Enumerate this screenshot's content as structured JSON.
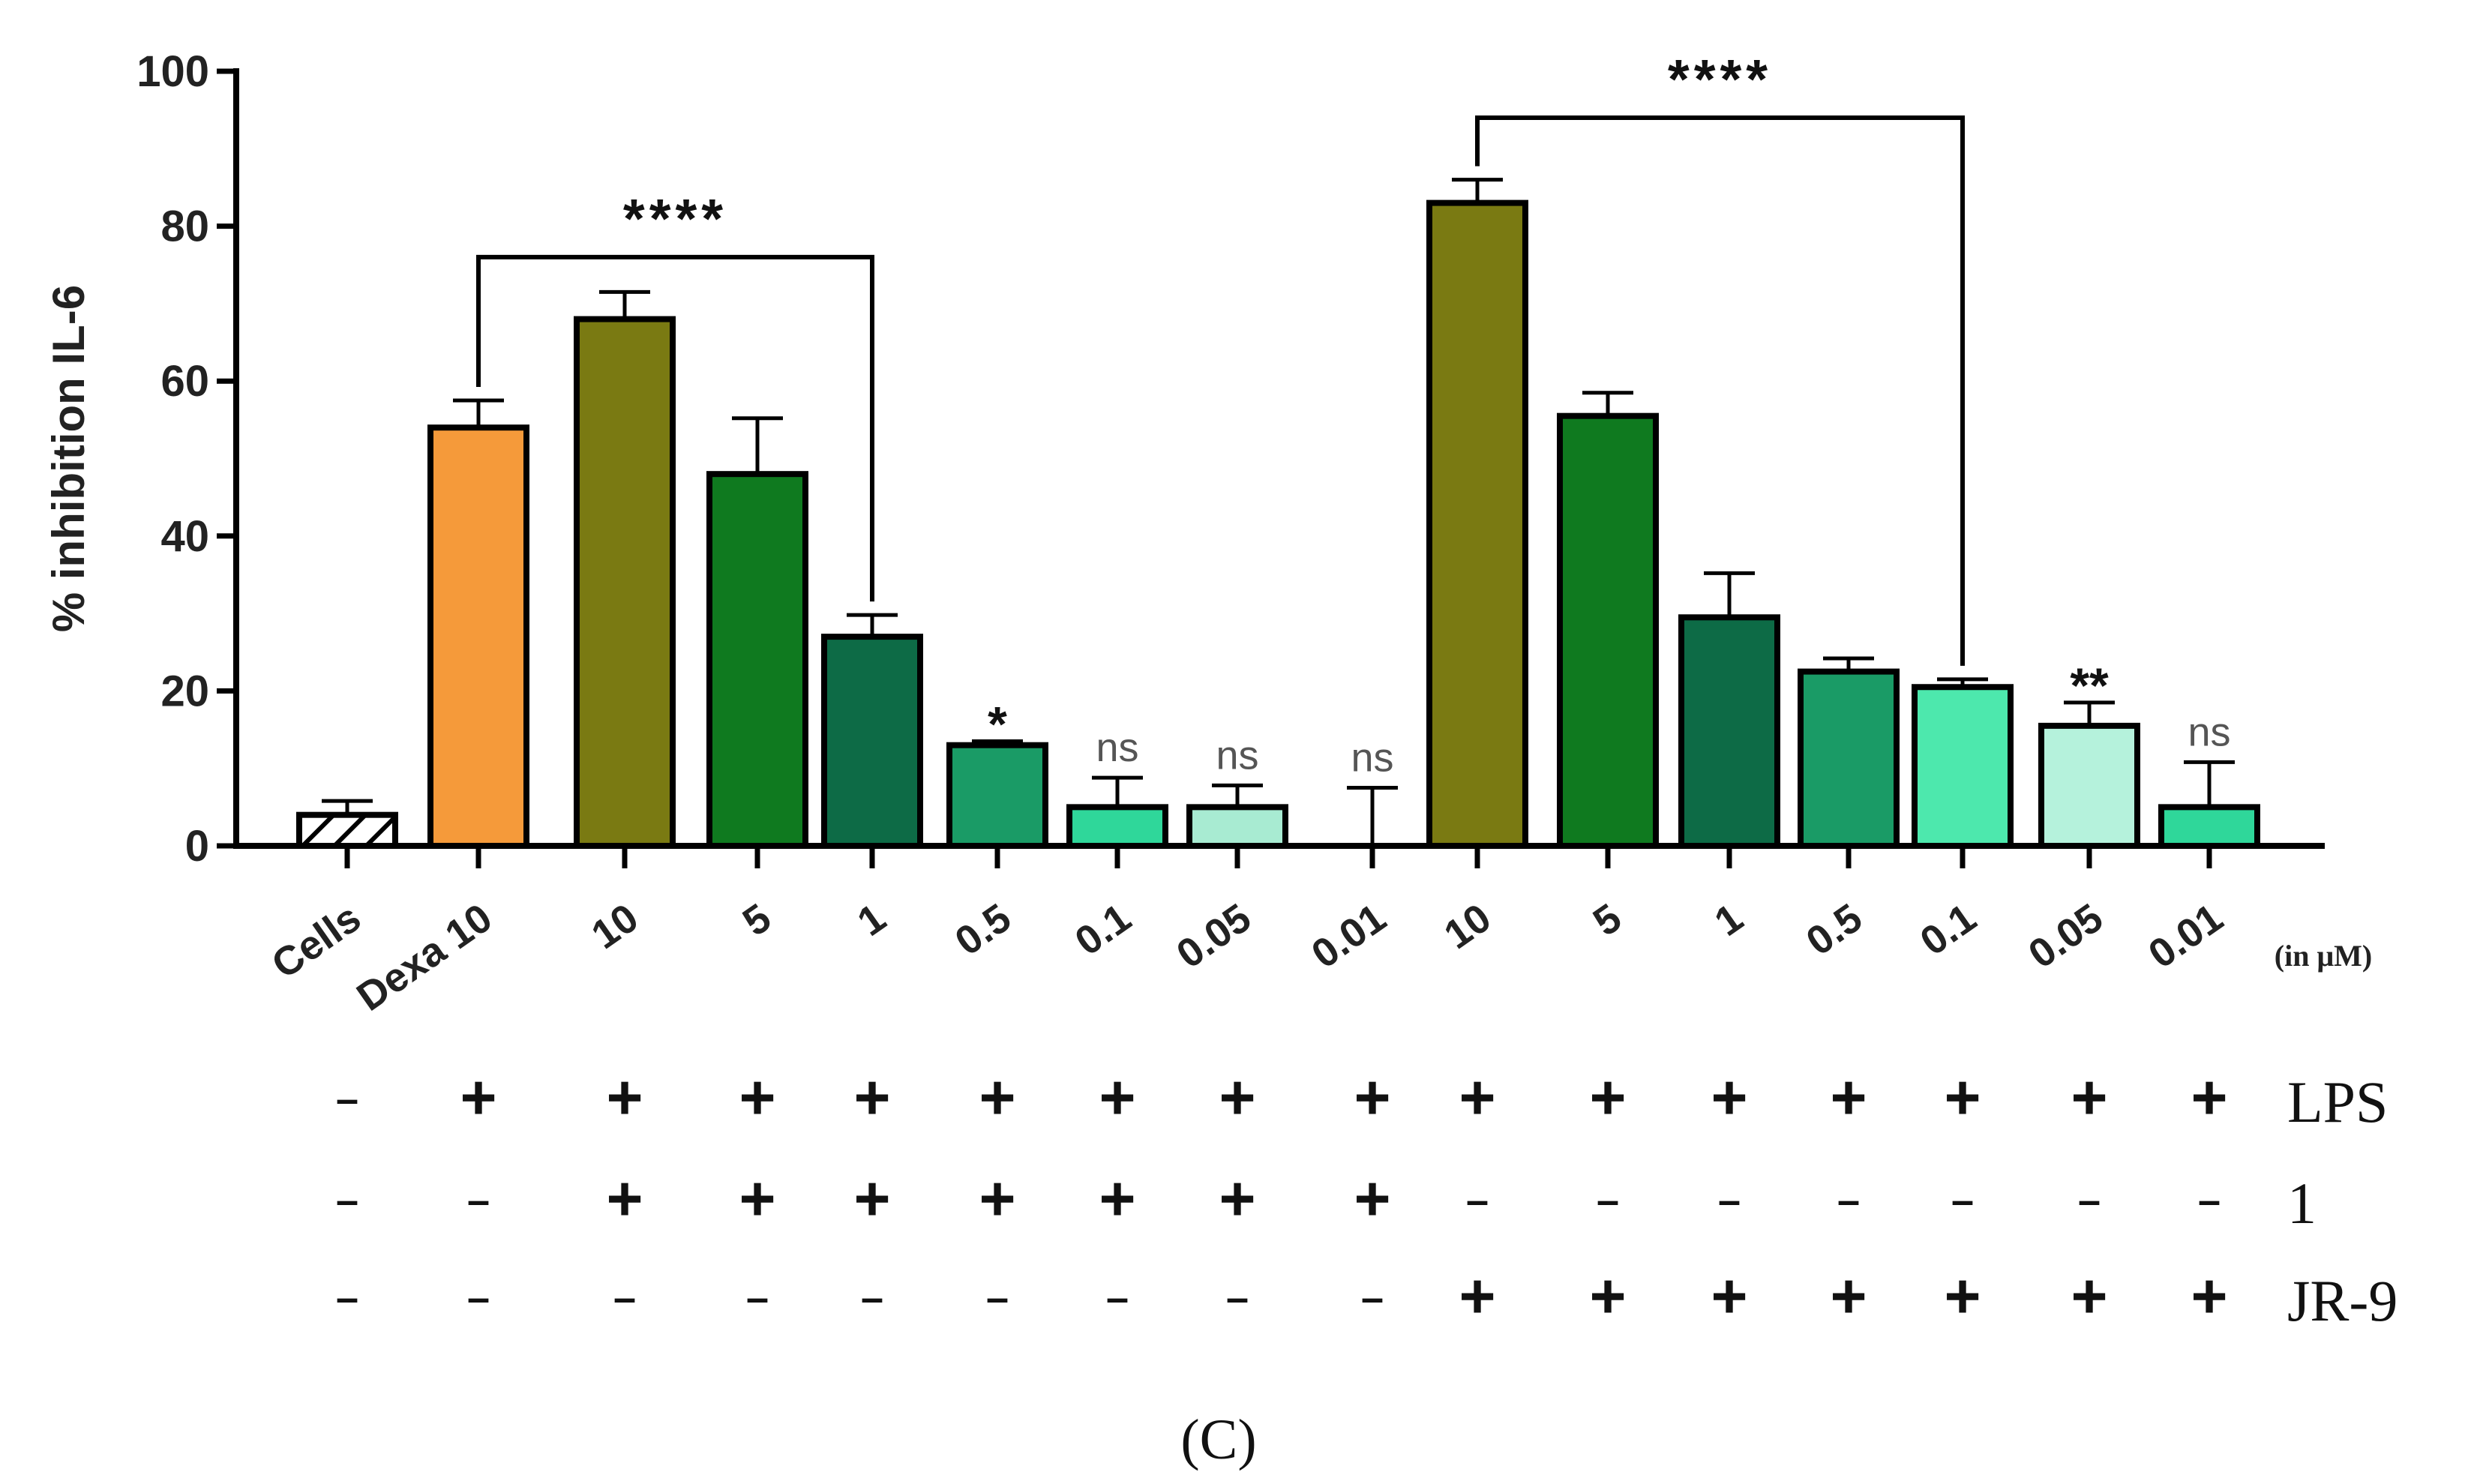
{
  "chart_data": {
    "type": "bar",
    "ylabel": "% inhibition IL-6",
    "ylim": [
      0,
      100
    ],
    "yticks": [
      "0",
      "20",
      "40",
      "60",
      "80",
      "100"
    ],
    "unit_label": "(in μM)",
    "panel_label": "(C)",
    "categories": [
      "Cells",
      "Dexa 10",
      "10",
      "5",
      "1",
      "0.5",
      "0.1",
      "0.05",
      "0.01",
      "10",
      "5",
      "1",
      "0.5",
      "0.1",
      "0.05",
      "0.01"
    ],
    "values": [
      4,
      54,
      68,
      48,
      27,
      13,
      5,
      5,
      0,
      83,
      55.5,
      29.5,
      22.5,
      20.5,
      15.5,
      5
    ],
    "error_upper": [
      5.8,
      57.5,
      71.5,
      55.2,
      29.8,
      13.5,
      8.8,
      7.8,
      7.5,
      86,
      58.5,
      35.2,
      24.2,
      21.5,
      18.5,
      10.8
    ],
    "colors": [
      "#ffffff",
      "#f59a3a",
      "#7a7a12",
      "#0f7a1f",
      "#0d6b46",
      "#1a9b66",
      "#2fd79a",
      "#a8ebd2",
      "#ffffff",
      "#7a7a12",
      "#0f7a1f",
      "#0d6b46",
      "#1a9b66",
      "#4de8ad",
      "#b5f2dc",
      "#2fd79a"
    ],
    "significance": [
      "",
      "",
      "",
      "",
      "",
      "*",
      "ns",
      "ns",
      "ns",
      "",
      "",
      "",
      "",
      "",
      "**",
      "ns"
    ],
    "brackets": [
      {
        "from": 1,
        "to": 4,
        "label": "****"
      },
      {
        "from": 9,
        "to": 13,
        "label": "****"
      }
    ],
    "treatment_rows": [
      {
        "label": "LPS",
        "symbols": [
          "–",
          "+",
          "+",
          "+",
          "+",
          "+",
          "+",
          "+",
          "+",
          "+",
          "+",
          "+",
          "+",
          "+",
          "+",
          "+"
        ]
      },
      {
        "label": "1",
        "symbols": [
          "–",
          "–",
          "+",
          "+",
          "+",
          "+",
          "+",
          "+",
          "+",
          "–",
          "–",
          "–",
          "–",
          "–",
          "–",
          "–"
        ]
      },
      {
        "label": "JR-9",
        "symbols": [
          "–",
          "–",
          "–",
          "–",
          "–",
          "–",
          "–",
          "–",
          "–",
          "+",
          "+",
          "+",
          "+",
          "+",
          "+",
          "+"
        ]
      }
    ]
  }
}
